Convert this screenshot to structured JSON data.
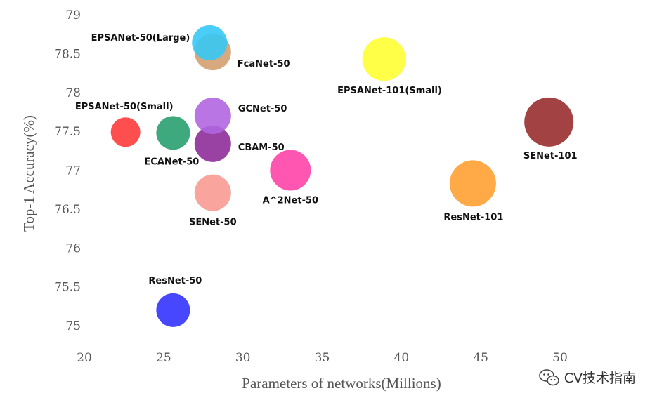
{
  "chart_data": {
    "type": "scatter",
    "xlabel": "Parameters of networks(Millions)",
    "ylabel": "Top-1 Accuracy(%)",
    "xlim": [
      20,
      50
    ],
    "ylim": [
      75,
      79
    ],
    "xticks": [
      "20",
      "25",
      "30",
      "35",
      "40",
      "45",
      "50"
    ],
    "yticks": [
      "75",
      "75.5",
      "76",
      "76.5",
      "77",
      "77.5",
      "78",
      "78.5",
      "79"
    ],
    "grid": false,
    "points": [
      {
        "name": "ResNet-50",
        "x": 25.6,
        "y": 75.2,
        "color": "#3333ff"
      },
      {
        "name": "EPSANet-50(Small)",
        "x": 22.6,
        "y": 77.49,
        "color": "#ff3b3b"
      },
      {
        "name": "ECANet-50",
        "x": 25.6,
        "y": 77.48,
        "color": "#2aa070"
      },
      {
        "name": "SENet-50",
        "x": 28.1,
        "y": 76.71,
        "color": "#f89a92"
      },
      {
        "name": "CBAM-50",
        "x": 28.1,
        "y": 77.34,
        "color": "#8e2e9a"
      },
      {
        "name": "GCNet-50",
        "x": 28.1,
        "y": 77.7,
        "color": "#b066e0"
      },
      {
        "name": "FcaNet-50",
        "x": 28.1,
        "y": 78.52,
        "color": "#d4a070"
      },
      {
        "name": "EPSANet-50(Large)",
        "x": 27.9,
        "y": 78.64,
        "color": "#36c8f5"
      },
      {
        "name": "A^2Net-50",
        "x": 33.0,
        "y": 77.0,
        "color": "#ff44a8"
      },
      {
        "name": "EPSANet-101(Small)",
        "x": 38.9,
        "y": 78.43,
        "color": "#ffff33"
      },
      {
        "name": "ResNet-101",
        "x": 44.5,
        "y": 76.83,
        "color": "#ffa033"
      },
      {
        "name": "SENet-101",
        "x": 49.3,
        "y": 77.62,
        "color": "#992e2e"
      }
    ]
  },
  "watermark": {
    "icon": "wechat-icon",
    "text": "CV技术指南"
  }
}
